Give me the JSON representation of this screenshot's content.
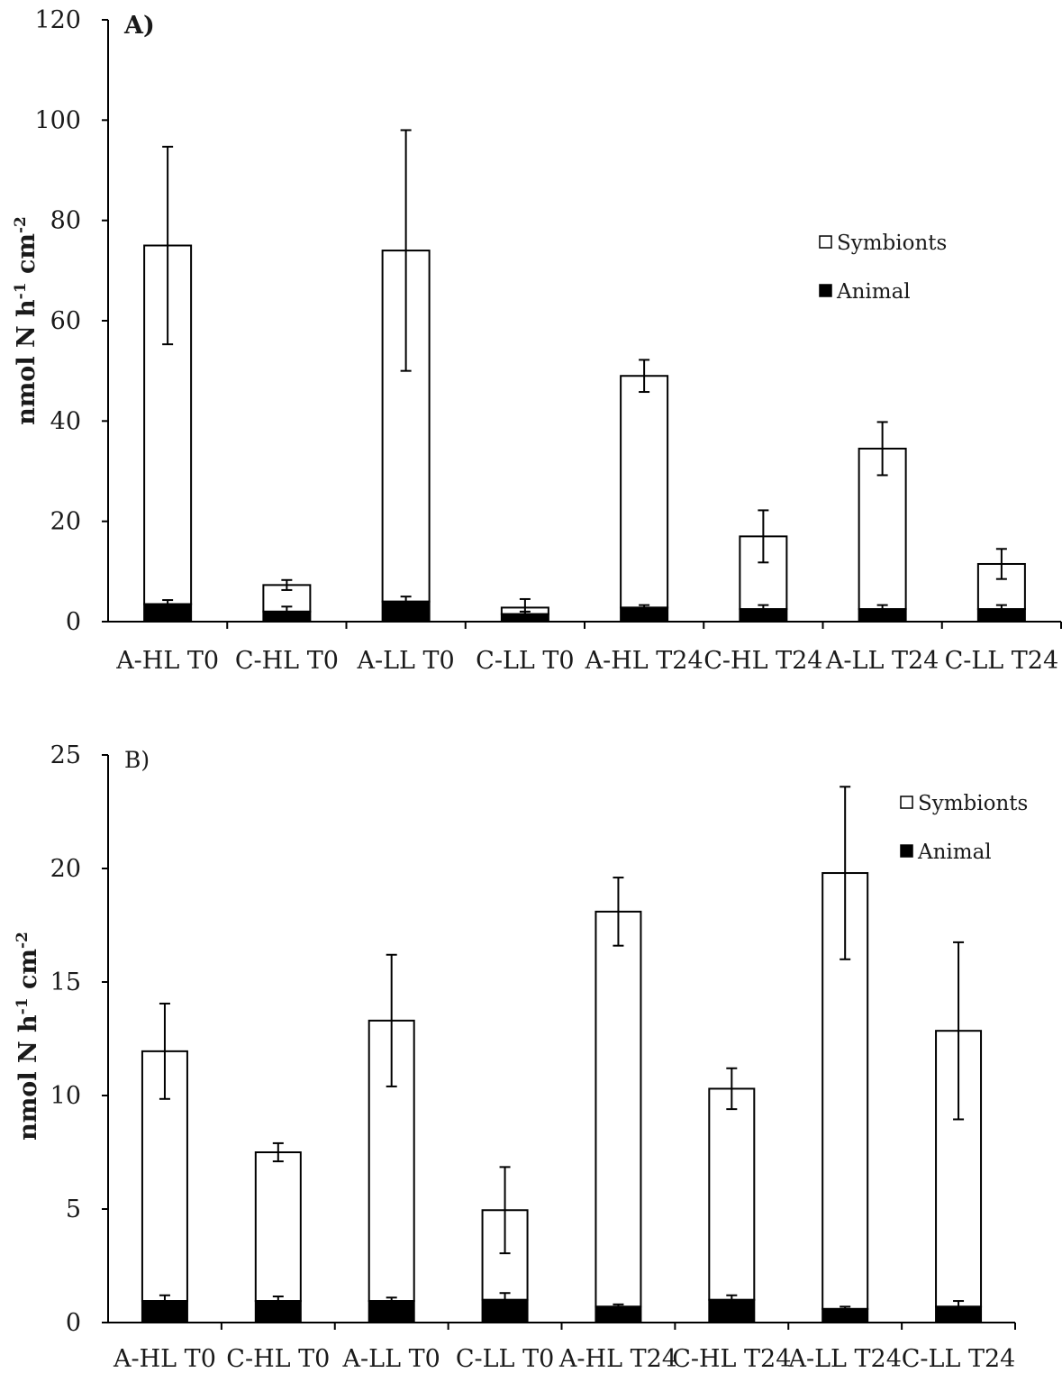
{
  "chart_data": [
    {
      "type": "bar",
      "stacked": true,
      "panel_label": "A)",
      "ylabel": "nmol N h-1 cm-2",
      "ylabel_parts": {
        "base": "nmol N h",
        "exp1": "-1",
        "mid": " cm",
        "exp2": "-2"
      },
      "ylim": [
        0,
        120
      ],
      "yticks": [
        "0",
        "20",
        "40",
        "60",
        "80",
        "100",
        "120"
      ],
      "categories": [
        "A-HL T0",
        "C-HL T0",
        "A-LL T0",
        "C-LL T0",
        "A-HL T24",
        "C-HL T24",
        "A-LL T24",
        "C-LL T24"
      ],
      "series": [
        {
          "name": "Animal",
          "color": "#000000",
          "values": [
            3.5,
            2.0,
            4.0,
            1.5,
            2.8,
            2.5,
            2.5,
            2.5
          ],
          "errors": [
            0.8,
            1.0,
            1.0,
            0.5,
            0.5,
            0.8,
            0.8,
            0.8
          ]
        },
        {
          "name": "Symbionts",
          "color": "#ffffff",
          "values": [
            71.5,
            5.3,
            70.0,
            1.3,
            46.2,
            14.5,
            32.0,
            9.0
          ],
          "errors": [
            19.7,
            1.0,
            24.0,
            1.7,
            3.2,
            5.2,
            5.3,
            3.0
          ]
        }
      ],
      "legend_position": "right"
    },
    {
      "type": "bar",
      "stacked": true,
      "panel_label": "B)",
      "ylabel": "nmol N h-1 cm-2",
      "ylabel_parts": {
        "base": "nmol N h",
        "exp1": "-1",
        "mid": " cm",
        "exp2": "-2"
      },
      "ylim": [
        0,
        25
      ],
      "yticks": [
        "0",
        "5",
        "10",
        "15",
        "20",
        "25"
      ],
      "categories": [
        "A-HL T0",
        "C-HL T0",
        "A-LL T0",
        "C-LL T0",
        "A-HL T24",
        "C-HL T24",
        "A-LL T24",
        "C-LL T24"
      ],
      "series": [
        {
          "name": "Animal",
          "color": "#000000",
          "values": [
            0.95,
            0.95,
            0.95,
            1.0,
            0.7,
            1.0,
            0.6,
            0.7
          ],
          "errors": [
            0.25,
            0.2,
            0.15,
            0.3,
            0.1,
            0.2,
            0.1,
            0.25
          ]
        },
        {
          "name": "Symbionts",
          "color": "#ffffff",
          "values": [
            11.0,
            6.55,
            12.35,
            3.95,
            17.4,
            9.3,
            19.2,
            12.15
          ],
          "errors": [
            2.1,
            0.4,
            2.9,
            1.9,
            1.5,
            0.9,
            3.8,
            3.9
          ]
        }
      ],
      "legend_position": "top-right"
    }
  ]
}
